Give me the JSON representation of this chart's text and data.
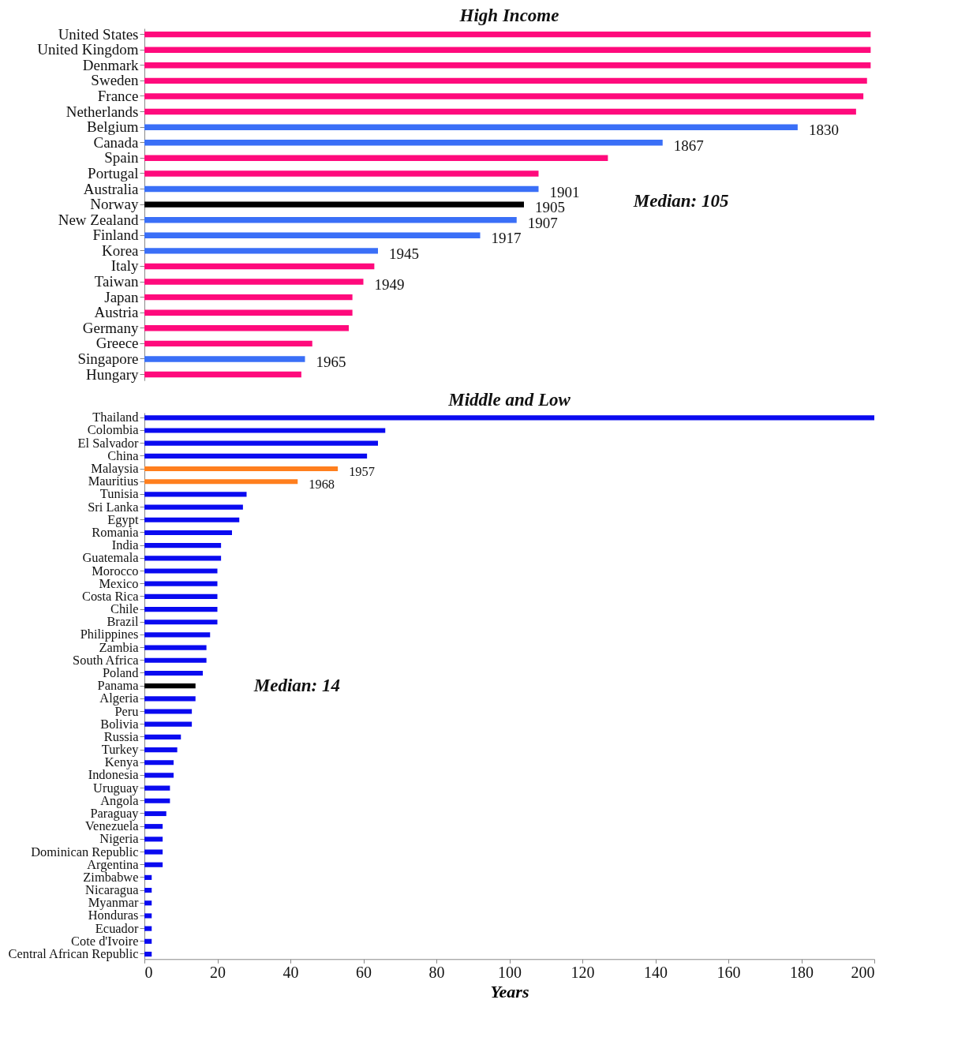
{
  "chart_data": [
    {
      "type": "bar",
      "orientation": "horizontal",
      "title": "High Income",
      "tick_labels": "y",
      "grid": false,
      "xlim": [
        0,
        200
      ],
      "xticks": [
        0,
        20,
        40,
        60,
        80,
        100,
        120,
        140,
        160,
        180,
        200
      ],
      "categories": [
        "United States",
        "United Kingdom",
        "Denmark",
        "Sweden",
        "France",
        "Netherlands",
        "Belgium",
        "Canada",
        "Spain",
        "Portugal",
        "Australia",
        "Norway",
        "New Zealand",
        "Finland",
        "Korea",
        "Italy",
        "Taiwan",
        "Japan",
        "Austria",
        "Germany",
        "Greece",
        "Singapore",
        "Hungary"
      ],
      "values": [
        199,
        199,
        199,
        198,
        197,
        195,
        179,
        142,
        127,
        108,
        108,
        104,
        102,
        92,
        64,
        63,
        60,
        57,
        57,
        56,
        46,
        44,
        43
      ],
      "colors": [
        "#ff0a7c",
        "#ff0a7c",
        "#ff0a7c",
        "#ff0a7c",
        "#ff0a7c",
        "#ff0a7c",
        "#3a6ff7",
        "#3a6ff7",
        "#ff0a7c",
        "#ff0a7c",
        "#3a6ff7",
        "#000000",
        "#3a6ff7",
        "#3a6ff7",
        "#3a6ff7",
        "#ff0a7c",
        "#ff0a7c",
        "#ff0a7c",
        "#ff0a7c",
        "#ff0a7c",
        "#ff0a7c",
        "#3a6ff7",
        "#ff0a7c"
      ],
      "annotations": [
        "Median: 105",
        {
          "text": "1830",
          "x": 179,
          "y": "Belgium"
        },
        {
          "text": "1867",
          "x": 142,
          "y": "Canada"
        },
        {
          "text": "1901",
          "x": 108,
          "y": "Australia"
        },
        {
          "text": "1905",
          "x": 104,
          "y": "Norway"
        },
        {
          "text": "1907",
          "x": 102,
          "y": "New Zealand"
        },
        {
          "text": "1917",
          "x": 92,
          "y": "Finland"
        },
        {
          "text": "1945",
          "x": 64,
          "y": "Korea"
        },
        {
          "text": "1949",
          "x": 60,
          "y": "Taiwan"
        },
        {
          "text": "1965",
          "x": 44,
          "y": "Singapore"
        }
      ]
    },
    {
      "type": "bar",
      "orientation": "horizontal",
      "title": "Middle and Low",
      "xlabel": "Years",
      "grid": false,
      "xlim": [
        0,
        200
      ],
      "xticks": [
        0,
        20,
        40,
        60,
        80,
        100,
        120,
        140,
        160,
        180,
        200
      ],
      "categories": [
        "Thailand",
        "Colombia",
        "El Salvador",
        "China",
        "Malaysia",
        "Mauritius",
        "Tunisia",
        "Sri Lanka",
        "Egypt",
        "Romania",
        "India",
        "Guatemala",
        "Morocco",
        "Mexico",
        "Costa Rica",
        "Chile",
        "Brazil",
        "Philippines",
        "Zambia",
        "South Africa",
        "Poland",
        "Panama",
        "Algeria",
        "Peru",
        "Bolivia",
        "Russia",
        "Turkey",
        "Kenya",
        "Indonesia",
        "Uruguay",
        "Angola",
        "Paraguay",
        "Venezuela",
        "Nigeria",
        "Dominican Republic",
        "Argentina",
        "Zimbabwe",
        "Nicaragua",
        "Myanmar",
        "Honduras",
        "Ecuador",
        "Cote d'Ivoire",
        "Central African Republic"
      ],
      "values": [
        200,
        66,
        64,
        61,
        53,
        42,
        28,
        27,
        26,
        24,
        21,
        21,
        20,
        20,
        20,
        20,
        20,
        18,
        17,
        17,
        16,
        14,
        14,
        13,
        13,
        10,
        9,
        8,
        8,
        7,
        7,
        6,
        5,
        5,
        5,
        5,
        2,
        2,
        2,
        2,
        2,
        2,
        2
      ],
      "colors": [
        "#0a0af0",
        "#0a0af0",
        "#0a0af0",
        "#0a0af0",
        "#ff7f1e",
        "#ff7f1e",
        "#0a0af0",
        "#0a0af0",
        "#0a0af0",
        "#0a0af0",
        "#0a0af0",
        "#0a0af0",
        "#0a0af0",
        "#0a0af0",
        "#0a0af0",
        "#0a0af0",
        "#0a0af0",
        "#0a0af0",
        "#0a0af0",
        "#0a0af0",
        "#0a0af0",
        "#000000",
        "#0a0af0",
        "#0a0af0",
        "#0a0af0",
        "#0a0af0",
        "#0a0af0",
        "#0a0af0",
        "#0a0af0",
        "#0a0af0",
        "#0a0af0",
        "#0a0af0",
        "#0a0af0",
        "#0a0af0",
        "#0a0af0",
        "#0a0af0",
        "#0a0af0",
        "#0a0af0",
        "#0a0af0",
        "#0a0af0",
        "#0a0af0",
        "#0a0af0",
        "#0a0af0"
      ],
      "annotations": [
        "Median: 14",
        {
          "text": "1957",
          "x": 53,
          "y": "Malaysia"
        },
        {
          "text": "1968",
          "x": 42,
          "y": "Mauritius"
        }
      ]
    }
  ]
}
